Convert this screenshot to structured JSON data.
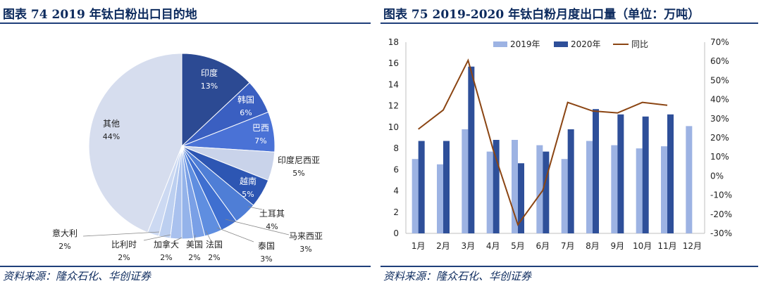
{
  "left_panel": {
    "title": "图表 74   2019 年钛白粉出口目的地",
    "source": "资料来源：隆众石化、华创证券"
  },
  "right_panel": {
    "title": "图表 75   2019-2020 年钛白粉月度出口量（单位：万吨）",
    "source": "资料来源：隆众石化、华创证券"
  },
  "chart_data": [
    {
      "type": "pie",
      "title": "2019 年钛白粉出口目的地",
      "slices": [
        {
          "label": "印度",
          "value": 13,
          "pct": "13%",
          "color": "#2c4a93"
        },
        {
          "label": "韩国",
          "value": 6,
          "pct": "6%",
          "color": "#3a5fc1"
        },
        {
          "label": "巴西",
          "value": 7,
          "pct": "7%",
          "color": "#4a72d6"
        },
        {
          "label": "印度尼西亚",
          "value": 5,
          "pct": "5%",
          "color": "#c9d3ea"
        },
        {
          "label": "越南",
          "value": 5,
          "pct": "5%",
          "color": "#2d56b3"
        },
        {
          "label": "土耳其",
          "value": 4,
          "pct": "4%",
          "color": "#4f7ed6"
        },
        {
          "label": "马来西亚",
          "value": 3,
          "pct": "3%",
          "color": "#3f6fd0"
        },
        {
          "label": "泰国",
          "value": 3,
          "pct": "3%",
          "color": "#5f8ee0"
        },
        {
          "label": "法国",
          "value": 2,
          "pct": "2%",
          "color": "#7aa0e6"
        },
        {
          "label": "美国",
          "value": 2,
          "pct": "2%",
          "color": "#94b3ea"
        },
        {
          "label": "加拿大",
          "value": 2,
          "pct": "2%",
          "color": "#a9c1ee"
        },
        {
          "label": "比利时",
          "value": 2,
          "pct": "2%",
          "color": "#bccff0"
        },
        {
          "label": "意大利",
          "value": 2,
          "pct": "2%",
          "color": "#ccd9f2"
        },
        {
          "label": "其他",
          "value": 44,
          "pct": "44%",
          "color": "#d6ddee"
        }
      ]
    },
    {
      "type": "bar",
      "title": "2019-2020 年钛白粉月度出口量（单位：万吨）",
      "categories": [
        "1月",
        "2月",
        "3月",
        "4月",
        "5月",
        "6月",
        "7月",
        "8月",
        "9月",
        "10月",
        "11月",
        "12月"
      ],
      "series": [
        {
          "name": "2019年",
          "kind": "bar",
          "color": "#9db3e3",
          "values": [
            7.0,
            6.5,
            9.8,
            7.7,
            8.8,
            8.3,
            7.0,
            8.7,
            8.3,
            8.0,
            8.2,
            10.1
          ]
        },
        {
          "name": "2020年",
          "kind": "bar",
          "color": "#2e4f99",
          "values": [
            8.7,
            8.7,
            15.7,
            8.8,
            6.6,
            7.7,
            9.8,
            11.7,
            11.2,
            11.0,
            11.2,
            null
          ]
        },
        {
          "name": "同比",
          "kind": "line",
          "axis": "right",
          "color": "#8b4513",
          "values": [
            24.5,
            34.5,
            60.5,
            14,
            -25.5,
            -7.5,
            38.5,
            34,
            33,
            38.5,
            37,
            null
          ]
        }
      ],
      "ylim": [
        0,
        18
      ],
      "yticks": [
        "0",
        "2",
        "4",
        "6",
        "8",
        "10",
        "12",
        "14",
        "16",
        "18"
      ],
      "y2lim": [
        -30,
        70
      ],
      "y2ticks": [
        "-30%",
        "-20%",
        "-10%",
        "0%",
        "10%",
        "20%",
        "30%",
        "40%",
        "50%",
        "60%",
        "70%"
      ],
      "legend": [
        "2019年",
        "2020年",
        "同比"
      ]
    }
  ]
}
